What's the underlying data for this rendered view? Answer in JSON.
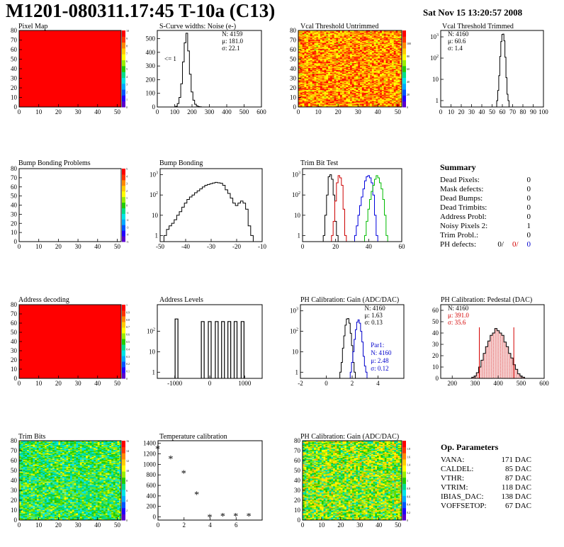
{
  "header": {
    "title": "M1201-080311.17:45 T-10a (C13)",
    "date": "Sat Nov 15 13:20:57 2008"
  },
  "summary": {
    "title": "Summary",
    "rows": [
      {
        "label": "Dead Pixels:",
        "value": "0"
      },
      {
        "label": "Mask defects:",
        "value": "0"
      },
      {
        "label": "Dead Bumps:",
        "value": "0"
      },
      {
        "label": "Dead Trimbits:",
        "value": "0"
      },
      {
        "label": "Address Probl:",
        "value": "0"
      },
      {
        "label": "Noisy Pixels 2:",
        "value": "1"
      },
      {
        "label": "Trim Probl.:",
        "value": "0"
      }
    ],
    "ph_defects": {
      "label": "PH defects:",
      "values": [
        "0/",
        "0/",
        "0"
      ],
      "colors": [
        "#000000",
        "#d40000",
        "#0000cc"
      ]
    }
  },
  "op_params": {
    "title": "Op. Parameters",
    "rows": [
      {
        "label": "VANA:",
        "value": "171 DAC"
      },
      {
        "label": "CALDEL:",
        "value": "85 DAC"
      },
      {
        "label": "VTHR:",
        "value": "87 DAC"
      },
      {
        "label": "VTRIM:",
        "value": "118 DAC"
      },
      {
        "label": "IBIAS_DAC:",
        "value": "138 DAC"
      },
      {
        "label": "VOFFSETOP:",
        "value": "67 DAC"
      }
    ]
  },
  "chart_data": [
    {
      "id": "pixel_map",
      "type": "heatmap",
      "title": "Pixel Map",
      "xlim": [
        0,
        52
      ],
      "ylim": [
        0,
        80
      ],
      "xticks": [
        0,
        10,
        20,
        30,
        40,
        50
      ],
      "yticks": [
        0,
        10,
        20,
        30,
        40,
        50,
        60,
        70,
        80
      ],
      "fill": "uniform",
      "z": 10,
      "zlim": [
        0,
        10
      ],
      "zticks": [
        0,
        1,
        2,
        3,
        4,
        5,
        6,
        7,
        8,
        9,
        10
      ]
    },
    {
      "id": "noise",
      "type": "histogram",
      "title": "S-Curve widths: Noise (e-)",
      "xlim": [
        0,
        600
      ],
      "ylim": [
        0,
        560
      ],
      "log": false,
      "xticks": [
        0,
        100,
        200,
        300,
        400,
        500,
        600
      ],
      "yticks": [
        0,
        100,
        200,
        300,
        400,
        500
      ],
      "stats": {
        "N": "4159",
        "mean": "181.0",
        "sigma": "22.1"
      },
      "annotation": "<= 1",
      "series": [
        {
          "color": "#000000",
          "x": [
            100,
            110,
            120,
            130,
            140,
            150,
            160,
            170,
            180,
            190,
            200,
            210,
            220,
            230,
            240,
            250,
            260
          ],
          "y": [
            0,
            5,
            25,
            70,
            170,
            330,
            470,
            540,
            410,
            240,
            110,
            50,
            20,
            8,
            3,
            1,
            0
          ]
        }
      ]
    },
    {
      "id": "vcal_untrimmed",
      "type": "heatmap",
      "title": "Vcal Threshold Untrimmed",
      "xlim": [
        0,
        52
      ],
      "ylim": [
        0,
        80
      ],
      "xticks": [
        0,
        10,
        20,
        30,
        40,
        50
      ],
      "yticks": [
        0,
        10,
        20,
        30,
        40,
        50,
        60,
        70,
        80
      ],
      "fill": "noise",
      "palette": "warm",
      "zlim": [
        0,
        120
      ],
      "zticks": [
        0,
        20,
        40,
        60,
        80,
        100
      ]
    },
    {
      "id": "vcal_trimmed",
      "type": "histogram",
      "title": "Vcal Threshold Trimmed",
      "xlim": [
        0,
        100
      ],
      "ylim": [
        0.5,
        2000
      ],
      "log": true,
      "xticks": [
        0,
        10,
        20,
        30,
        40,
        50,
        60,
        70,
        80,
        90,
        100
      ],
      "yticks": [
        1,
        10,
        100,
        1000
      ],
      "stats": {
        "N": "4160",
        "mean": "60.6",
        "sigma": "1.4"
      },
      "series": [
        {
          "color": "#000000",
          "x": [
            55,
            56,
            57,
            58,
            59,
            60,
            61,
            62,
            63,
            64,
            65,
            66
          ],
          "y": [
            1,
            3,
            15,
            120,
            600,
            1300,
            1350,
            650,
            110,
            12,
            2,
            1
          ]
        }
      ]
    },
    {
      "id": "bump_problems",
      "type": "heatmap",
      "title": "Bump Bonding Problems",
      "xlim": [
        0,
        52
      ],
      "ylim": [
        0,
        80
      ],
      "xticks": [
        0,
        10,
        20,
        30,
        40,
        50
      ],
      "yticks": [
        0,
        10,
        20,
        30,
        40,
        50,
        60,
        70,
        80
      ],
      "fill": "empty",
      "zlim": [
        -5,
        5
      ],
      "zticks": [
        -5,
        -4,
        -3,
        -2,
        -1,
        0,
        1,
        2,
        3,
        4,
        5
      ]
    },
    {
      "id": "bump_bonding",
      "type": "histogram",
      "title": "Bump Bonding",
      "xlim": [
        -50,
        -10
      ],
      "ylim": [
        0.5,
        2000
      ],
      "log": true,
      "xticks": [
        -50,
        -40,
        -30,
        -20,
        -10
      ],
      "yticks": [
        1,
        10,
        100,
        1000
      ],
      "series": [
        {
          "color": "#000000",
          "x": [
            -49,
            -48,
            -47,
            -46,
            -45,
            -44,
            -43,
            -42,
            -41,
            -40,
            -39,
            -38,
            -37,
            -36,
            -35,
            -34,
            -33,
            -32,
            -31,
            -30,
            -29,
            -28,
            -27,
            -26,
            -25,
            -24,
            -23,
            -22,
            -21,
            -20,
            -19,
            -18,
            -17,
            -16,
            -15,
            -14,
            -13
          ],
          "y": [
            0,
            1,
            2,
            3,
            4,
            6,
            10,
            15,
            25,
            40,
            60,
            80,
            100,
            130,
            160,
            200,
            250,
            300,
            330,
            360,
            390,
            420,
            400,
            380,
            300,
            180,
            120,
            70,
            40,
            30,
            40,
            50,
            40,
            20,
            3,
            1,
            0
          ]
        }
      ]
    },
    {
      "id": "trim_bit_test",
      "type": "histogram",
      "title": "Trim Bit Test",
      "xlim": [
        0,
        60
      ],
      "ylim": [
        0.5,
        2000
      ],
      "log": true,
      "xticks": [
        0,
        20,
        40,
        60
      ],
      "yticks": [
        1,
        10,
        100,
        1000
      ],
      "series": [
        {
          "color": "#000000",
          "x": [
            13,
            14,
            15,
            16,
            17,
            18,
            19,
            20,
            21
          ],
          "y": [
            1,
            10,
            100,
            800,
            1000,
            600,
            100,
            5,
            1
          ]
        },
        {
          "color": "#cc0000",
          "x": [
            18,
            19,
            20,
            21,
            22,
            23,
            24,
            25,
            26
          ],
          "y": [
            1,
            5,
            50,
            400,
            900,
            700,
            300,
            20,
            1
          ]
        },
        {
          "color": "#0000dd",
          "x": [
            32,
            33,
            34,
            35,
            36,
            37,
            38,
            39,
            40,
            41,
            42,
            43,
            44,
            45
          ],
          "y": [
            1,
            3,
            10,
            30,
            80,
            200,
            500,
            800,
            900,
            700,
            400,
            100,
            10,
            1
          ]
        },
        {
          "color": "#00bb00",
          "x": [
            38,
            39,
            40,
            41,
            42,
            43,
            44,
            45,
            46,
            47,
            48,
            49,
            50,
            51
          ],
          "y": [
            1,
            5,
            20,
            60,
            150,
            300,
            600,
            900,
            700,
            400,
            200,
            60,
            10,
            1
          ]
        }
      ]
    },
    {
      "id": "address_decoding",
      "type": "heatmap",
      "title": "Address decoding",
      "xlim": [
        0,
        52
      ],
      "ylim": [
        0,
        80
      ],
      "xticks": [
        0,
        10,
        20,
        30,
        40,
        50
      ],
      "yticks": [
        0,
        10,
        20,
        30,
        40,
        50,
        60,
        70,
        80
      ],
      "fill": "uniform",
      "z": 1,
      "zlim": [
        0,
        1
      ],
      "zticks": [
        0,
        0.1,
        0.2,
        0.3,
        0.4,
        0.5,
        0.6,
        0.7,
        0.8,
        0.9,
        1
      ]
    },
    {
      "id": "address_levels",
      "type": "histogram",
      "title": "Address Levels",
      "xlim": [
        -1500,
        1500
      ],
      "ylim": [
        0.5,
        2000
      ],
      "log": true,
      "xticks": [
        -1000,
        0,
        1000
      ],
      "yticks": [
        1,
        10,
        100
      ],
      "series": [
        {
          "color": "#000000",
          "peaks": [
            {
              "x": -950,
              "y": 400
            },
            {
              "x": -200,
              "y": 300
            },
            {
              "x": 0,
              "y": 300
            },
            {
              "x": 200,
              "y": 300
            },
            {
              "x": 380,
              "y": 300
            },
            {
              "x": 560,
              "y": 300
            },
            {
              "x": 740,
              "y": 300
            },
            {
              "x": 940,
              "y": 300
            }
          ]
        }
      ]
    },
    {
      "id": "ph_gain",
      "type": "histogram",
      "title": "PH Calibration: Gain (ADC/DAC)",
      "xlim": [
        -2,
        6
      ],
      "ylim": [
        0.5,
        2000
      ],
      "log": true,
      "xticks": [
        -2,
        0,
        2,
        4
      ],
      "yticks": [
        1,
        10,
        100,
        1000
      ],
      "stats": {
        "N": "4160",
        "mean": "1.63",
        "sigma": "0.13"
      },
      "stats2": {
        "title": "Par1:",
        "N": "4160",
        "mean": "2.48",
        "sigma": "0.12",
        "color": "#0000cc"
      },
      "series": [
        {
          "color": "#000000",
          "x": [
            1.1,
            1.2,
            1.3,
            1.4,
            1.5,
            1.6,
            1.7,
            1.8,
            1.9,
            2.0,
            2.1,
            2.2
          ],
          "y": [
            1,
            3,
            15,
            60,
            200,
            400,
            420,
            250,
            80,
            20,
            3,
            1
          ]
        },
        {
          "color": "#0000cc",
          "x": [
            1.9,
            2.0,
            2.1,
            2.2,
            2.3,
            2.4,
            2.5,
            2.6,
            2.7,
            2.8,
            2.9,
            3.0,
            3.1
          ],
          "y": [
            1,
            3,
            10,
            40,
            120,
            280,
            360,
            250,
            100,
            30,
            6,
            2,
            1
          ]
        }
      ]
    },
    {
      "id": "ph_pedestal",
      "type": "histogram",
      "title": "PH Calibration: Pedestal (DAC)",
      "xlim": [
        150,
        600
      ],
      "ylim": [
        0,
        65
      ],
      "log": false,
      "xticks": [
        200,
        300,
        400,
        500,
        600
      ],
      "yticks": [
        0,
        10,
        20,
        30,
        40,
        50,
        60
      ],
      "stats": {
        "N": "4160",
        "mean": "391.0",
        "sigma": "35.6"
      },
      "series": [
        {
          "color": "#000000",
          "x": [
            290,
            300,
            310,
            320,
            330,
            340,
            350,
            360,
            370,
            380,
            390,
            400,
            410,
            420,
            430,
            440,
            450,
            460,
            470,
            480,
            490,
            500,
            510,
            520
          ],
          "y": [
            1,
            2,
            5,
            10,
            16,
            22,
            28,
            33,
            38,
            40,
            44,
            42,
            40,
            38,
            32,
            28,
            22,
            18,
            12,
            8,
            4,
            2,
            1,
            0
          ]
        }
      ]
    },
    {
      "id": "trim_bits",
      "type": "heatmap",
      "title": "Trim Bits",
      "xlim": [
        0,
        52
      ],
      "ylim": [
        0,
        80
      ],
      "xticks": [
        0,
        10,
        20,
        30,
        40,
        50
      ],
      "yticks": [
        0,
        10,
        20,
        30,
        40,
        50,
        60,
        70,
        80
      ],
      "fill": "noise",
      "palette": "cool",
      "zlim": [
        0,
        16
      ],
      "zticks": [
        0,
        2,
        4,
        6,
        8,
        10,
        12,
        14,
        16
      ]
    },
    {
      "id": "temperature",
      "type": "scatter",
      "title": "Temperature calibration",
      "xlim": [
        0,
        8
      ],
      "ylim": [
        -60,
        1450
      ],
      "xticks": [
        0,
        2,
        4,
        6
      ],
      "yticks": [
        0,
        200,
        400,
        600,
        800,
        1000,
        1200,
        1400
      ],
      "series": [
        {
          "color": "#000000",
          "x": [
            0,
            1,
            2,
            3,
            4,
            5,
            6,
            7
          ],
          "y": [
            1290,
            1100,
            820,
            420,
            -10,
            10,
            10,
            10
          ]
        }
      ]
    },
    {
      "id": "ph_gain_map",
      "type": "heatmap",
      "title": "PH Calibration: Gain (ADC/DAC)",
      "xlim": [
        0,
        52
      ],
      "ylim": [
        0,
        80
      ],
      "xticks": [
        0,
        10,
        20,
        30,
        40,
        50
      ],
      "yticks": [
        0,
        10,
        20,
        30,
        40,
        50,
        60,
        70,
        80
      ],
      "fill": "noise",
      "palette": "mid",
      "zlim": [
        0,
        2
      ],
      "zticks": [
        0,
        0.2,
        0.4,
        0.6,
        0.8,
        1,
        1.2,
        1.4,
        1.6,
        1.8
      ]
    }
  ]
}
